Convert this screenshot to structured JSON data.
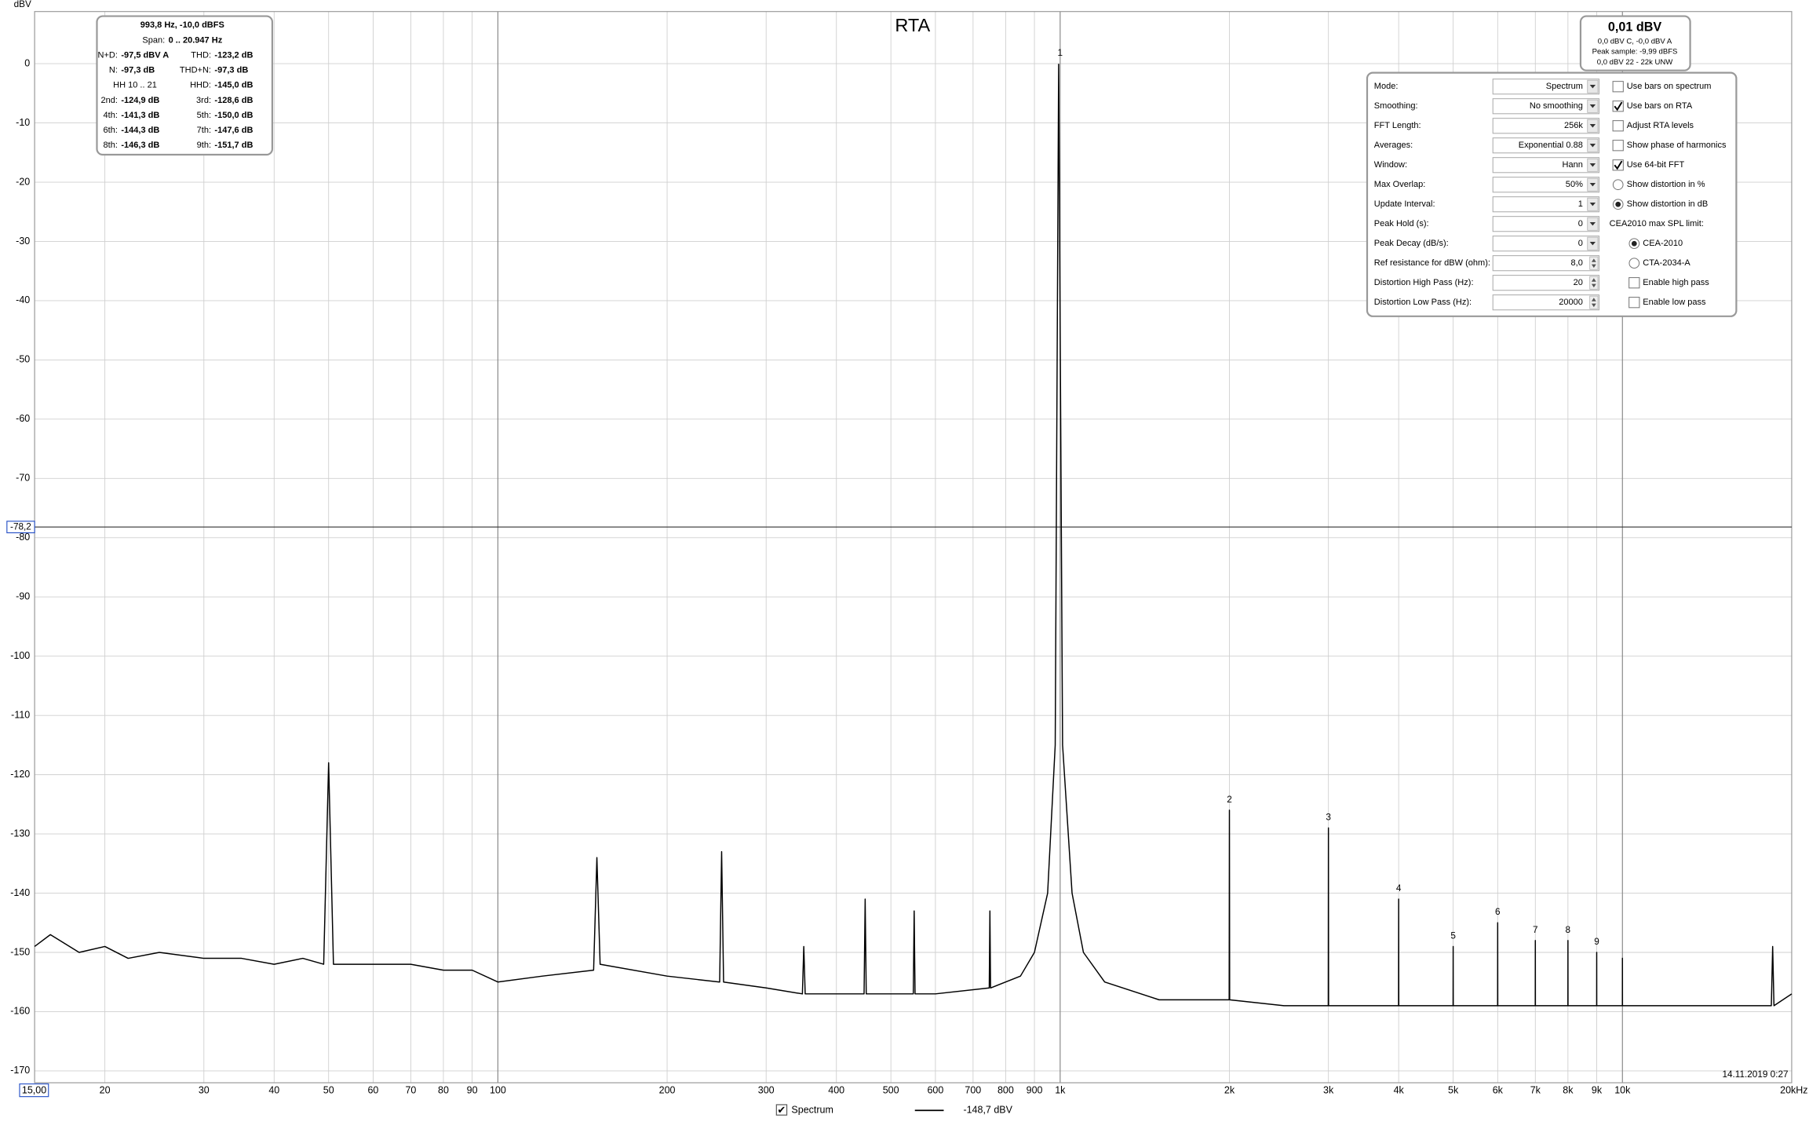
{
  "chart_data": {
    "type": "line",
    "title": "RTA",
    "y_label": "dBV",
    "timestamp": "14.11.2019 0:27",
    "xlim": [
      15,
      20000
    ],
    "ylim": [
      -172,
      8.8
    ],
    "log_x": true,
    "grid": true,
    "xticks": [
      {
        "value": 15,
        "label": "15,00"
      },
      20,
      30,
      40,
      50,
      60,
      70,
      80,
      90,
      100,
      200,
      300,
      400,
      500,
      600,
      700,
      800,
      900,
      {
        "value": 1000,
        "label": "1k"
      },
      {
        "value": 2000,
        "label": "2k"
      },
      {
        "value": 3000,
        "label": "3k"
      },
      {
        "value": 4000,
        "label": "4k"
      },
      {
        "value": 5000,
        "label": "5k"
      },
      {
        "value": 6000,
        "label": "6k"
      },
      {
        "value": 7000,
        "label": "7k"
      },
      {
        "value": 8000,
        "label": "8k"
      },
      {
        "value": 9000,
        "label": "9k"
      },
      {
        "value": 10000,
        "label": "10k"
      },
      {
        "value": 20000,
        "label": "20kHz"
      }
    ],
    "major_xticks": [
      100,
      1000,
      10000
    ],
    "yticks": [
      0,
      -10,
      -20,
      -30,
      -40,
      -50,
      -60,
      -70,
      -80,
      -90,
      -100,
      -110,
      -120,
      -130,
      -140,
      -150,
      -160,
      -170
    ],
    "cursor": {
      "value": -78.2,
      "label": "-78,2"
    },
    "x": [
      15,
      16,
      18,
      20,
      22,
      25,
      30,
      35,
      40,
      45,
      49,
      50,
      51,
      60,
      70,
      80,
      90,
      100,
      120,
      148,
      150,
      152,
      200,
      248,
      250,
      252,
      300,
      348,
      350,
      352,
      400,
      448,
      450,
      452,
      548,
      550,
      552,
      600,
      748,
      750,
      752,
      850,
      900,
      950,
      980,
      993.8,
      1010,
      1050,
      1100,
      1200,
      1500,
      1998,
      2000,
      2002,
      2500,
      2998,
      3000,
      3002,
      3998,
      4000,
      4002,
      4998,
      5000,
      5002,
      5998,
      6000,
      6002,
      6998,
      7000,
      7002,
      7998,
      8000,
      8002,
      8998,
      9000,
      9002,
      9998,
      10000,
      10002,
      15000,
      18400,
      18500,
      18600,
      20000
    ],
    "series": [
      {
        "name": "Spectrum",
        "color": "#000000",
        "checked": true,
        "values": [
          -149,
          -147,
          -150,
          -149,
          -151,
          -150,
          -151,
          -151,
          -152,
          -151,
          -152,
          -118,
          -152,
          -152,
          -152,
          -153,
          -153,
          -155,
          -154,
          -153,
          -134,
          -152,
          -154,
          -155,
          -133,
          -155,
          -156,
          -157,
          -149,
          -157,
          -157,
          -157,
          -141,
          -157,
          -157,
          -143,
          -157,
          -157,
          -156,
          -143,
          -156,
          -154,
          -150,
          -140,
          -115,
          -0.1,
          -115,
          -140,
          -150,
          -155,
          -158,
          -158,
          -126,
          -158,
          -159,
          -159,
          -129,
          -159,
          -159,
          -141,
          -159,
          -159,
          -149,
          -159,
          -159,
          -145,
          -159,
          -159,
          -148,
          -159,
          -159,
          -148,
          -159,
          -159,
          -150,
          -159,
          -159,
          -151,
          -159,
          -159,
          -159,
          -149,
          -159,
          -157
        ]
      }
    ],
    "legend_value": "-148,7 dBV",
    "markers": [
      {
        "label": "1",
        "x": 1000,
        "y": 0
      },
      {
        "label": "2",
        "x": 2000,
        "y": -126
      },
      {
        "label": "3",
        "x": 3000,
        "y": -129
      },
      {
        "label": "4",
        "x": 4000,
        "y": -141
      },
      {
        "label": "5",
        "x": 5000,
        "y": -149
      },
      {
        "label": "6",
        "x": 6000,
        "y": -145
      },
      {
        "label": "7",
        "x": 7000,
        "y": -148
      },
      {
        "label": "8",
        "x": 8000,
        "y": -148
      },
      {
        "label": "9",
        "x": 9000,
        "y": -150
      }
    ]
  },
  "info_box": {
    "header": "993,8 Hz, -10,0 dBFS",
    "span_label": "Span:",
    "span_value": "0 .. 20.947 Hz",
    "rows": [
      [
        {
          "label": "N+D:",
          "value": "-97,5 dBV A"
        },
        {
          "label": "THD:",
          "value": "-123,2 dB"
        }
      ],
      [
        {
          "label": "N:",
          "value": "-97,3 dB"
        },
        {
          "label": "THD+N:",
          "value": "-97,3 dB"
        }
      ],
      [
        {
          "label": "HH 10 .. 21"
        },
        {
          "label": "HHD:",
          "value": "-145,0 dB"
        }
      ],
      [
        {
          "label": "2nd:",
          "value": "-124,9 dB"
        },
        {
          "label": "3rd:",
          "value": "-128,6 dB"
        }
      ],
      [
        {
          "label": "4th:",
          "value": "-141,3 dB"
        },
        {
          "label": "5th:",
          "value": "-150,0 dB"
        }
      ],
      [
        {
          "label": "6th:",
          "value": "-144,3 dB"
        },
        {
          "label": "7th:",
          "value": "-147,6 dB"
        }
      ],
      [
        {
          "label": "8th:",
          "value": "-146,3 dB"
        },
        {
          "label": "9th:",
          "value": "-151,7 dB"
        }
      ]
    ]
  },
  "level_box": {
    "level": "0,01 dBV",
    "lines": [
      "0,0 dBV C, -0,0 dBV A",
      "Peak sample: -9,99 dBFS",
      "0,0 dBV 22 - 22k UNW"
    ]
  },
  "settings": {
    "left": [
      {
        "label": "Mode:",
        "value": "Spectrum",
        "control": "dropdown"
      },
      {
        "label": "Smoothing:",
        "value": "No  smoothing",
        "control": "dropdown"
      },
      {
        "label": "FFT Length:",
        "value": "256k",
        "control": "dropdown"
      },
      {
        "label": "Averages:",
        "value": "Exponential 0.88",
        "control": "dropdown"
      },
      {
        "label": "Window:",
        "value": "Hann",
        "control": "dropdown"
      },
      {
        "label": "Max Overlap:",
        "value": "50%",
        "control": "dropdown"
      },
      {
        "label": "Update Interval:",
        "value": "1",
        "control": "dropdown"
      },
      {
        "label": "Peak Hold (s):",
        "value": "0",
        "control": "dropdown"
      },
      {
        "label": "Peak Decay (dB/s):",
        "value": "0",
        "control": "dropdown"
      },
      {
        "label": "Ref resistance for dBW (ohm):",
        "value": "8,0",
        "control": "spinner"
      },
      {
        "label": "Distortion High Pass (Hz):",
        "value": "20",
        "control": "spinner"
      },
      {
        "label": "Distortion Low Pass (Hz):",
        "value": "20000",
        "control": "spinner"
      }
    ],
    "right": [
      {
        "label": "Use bars on spectrum",
        "kind": "checkbox",
        "checked": false
      },
      {
        "label": "Use bars on RTA",
        "kind": "checkbox",
        "checked": true
      },
      {
        "label": "Adjust RTA levels",
        "kind": "checkbox",
        "checked": false
      },
      {
        "label": "Show phase of harmonics",
        "kind": "checkbox",
        "checked": false
      },
      {
        "label": "Use 64-bit FFT",
        "kind": "checkbox",
        "checked": true
      },
      {
        "label": "Show distortion in %",
        "kind": "radio",
        "checked": false
      },
      {
        "label": "Show distortion in dB",
        "kind": "radio",
        "checked": true
      },
      {
        "label": "CEA2010 max SPL limit:",
        "kind": "text"
      },
      {
        "label": "CEA-2010",
        "kind": "radio",
        "checked": true
      },
      {
        "label": "CTA-2034-A",
        "kind": "radio",
        "checked": false
      },
      {
        "label": "Enable high pass",
        "kind": "checkbox",
        "checked": false
      },
      {
        "label": "Enable low pass",
        "kind": "checkbox",
        "checked": false
      }
    ]
  }
}
